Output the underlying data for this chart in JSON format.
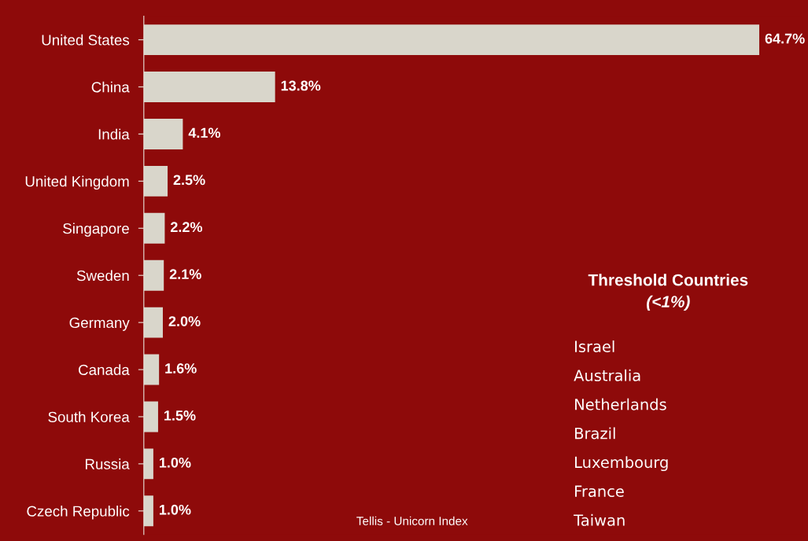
{
  "chart_data": {
    "type": "bar",
    "orientation": "horizontal",
    "categories": [
      "United States",
      "China",
      "India",
      "United Kingdom",
      "Singapore",
      "Sweden",
      "Germany",
      "Canada",
      "South Korea",
      "Russia",
      "Czech Republic"
    ],
    "values": [
      64.7,
      13.8,
      4.1,
      2.5,
      2.2,
      2.1,
      2.0,
      1.6,
      1.5,
      1.0,
      1.0
    ],
    "value_labels": [
      "64.7%",
      "13.8%",
      "4.1%",
      "2.5%",
      "2.2%",
      "2.1%",
      "2.0%",
      "1.6%",
      "1.5%",
      "1.0%",
      "1.0%"
    ],
    "color": "#d9d6cb",
    "tick_labels": "y",
    "grid": false,
    "legend": false,
    "annotations": [
      "Threshold Countries",
      "(<1%)",
      "Israel",
      "Australia",
      "Netherlands",
      "Brazil",
      "Luxembourg",
      "France",
      "Taiwan",
      "Tellis - Unicorn Index"
    ]
  }
}
